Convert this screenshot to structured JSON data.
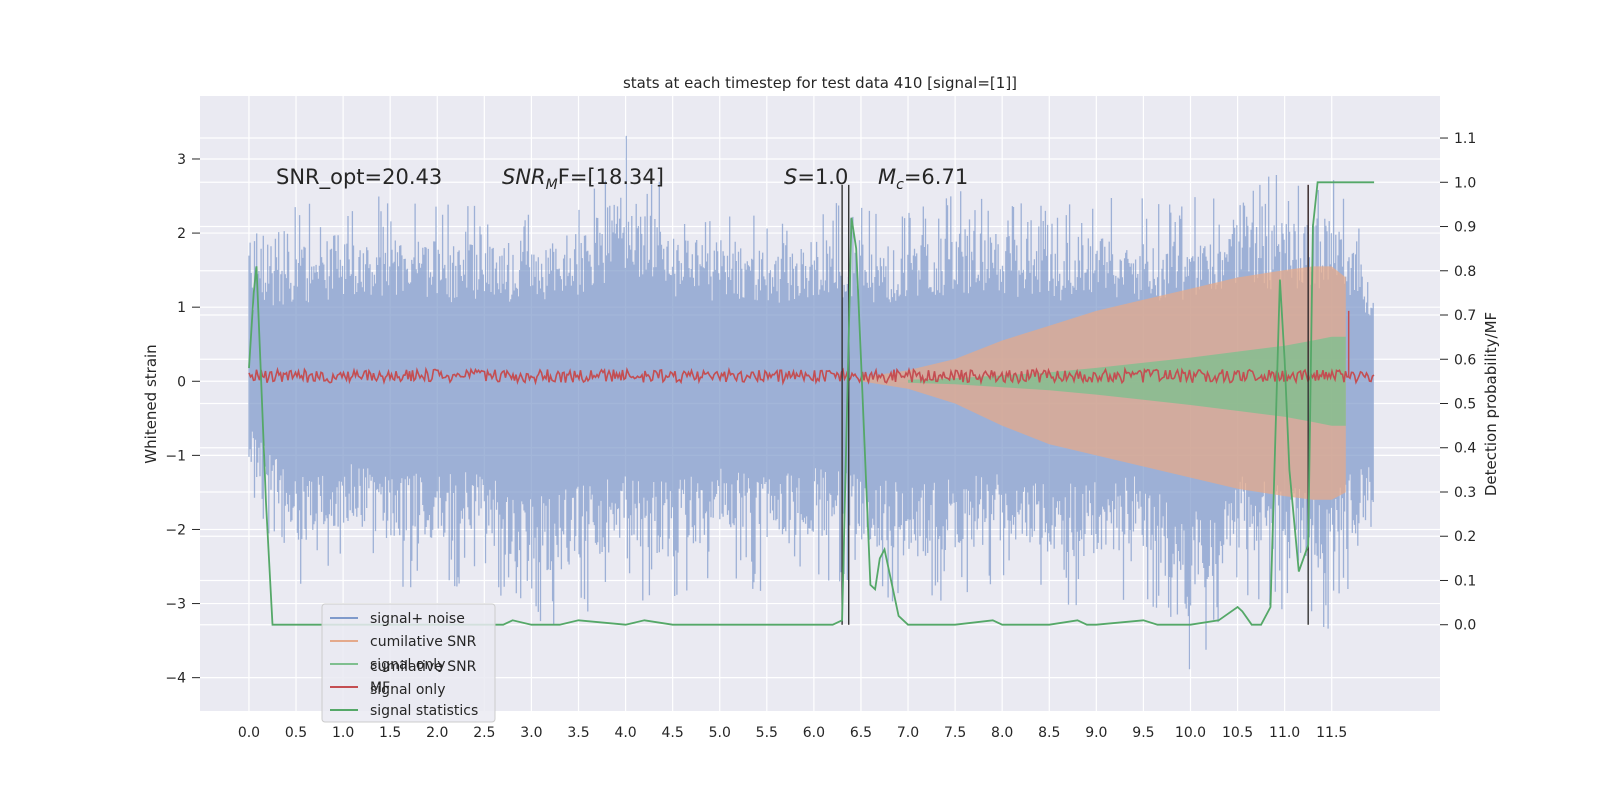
{
  "chart_data": {
    "type": "line",
    "title": "stats at each timestep for test data 410 [signal=[1]]",
    "xlabel": "",
    "ylabel": "Whitened strain",
    "ylabel_right": "Detection probability/MF",
    "xlim": [
      -0.52,
      12.65
    ],
    "ylim": [
      -4.45,
      3.85
    ],
    "ylim_right": [
      -0.195,
      1.195
    ],
    "x_ticks": [
      "0.0",
      "0.5",
      "1.0",
      "1.5",
      "2.0",
      "2.5",
      "3.0",
      "3.5",
      "4.0",
      "4.5",
      "5.0",
      "5.5",
      "6.0",
      "6.5",
      "7.0",
      "7.5",
      "8.0",
      "8.5",
      "9.0",
      "9.5",
      "10.0",
      "10.5",
      "11.0",
      "11.5"
    ],
    "y_ticks": [
      "3",
      "2",
      "1",
      "0",
      "−1",
      "−2",
      "−3",
      "−4"
    ],
    "y_right_ticks": [
      "1.1",
      "1.0",
      "0.9",
      "0.8",
      "0.7",
      "0.6",
      "0.5",
      "0.4",
      "0.3",
      "0.2",
      "0.1",
      "0.0"
    ],
    "grid": true,
    "legend_position": "lower-left",
    "annotations": {
      "snr_opt": "SNR_opt=20.43",
      "snr_mf_sym": "SNR",
      "snr_mf_sub": "M",
      "snr_mf_rest": "F=[18.34]",
      "s_sym": "S",
      "s_rest": "=1.0",
      "mc_sym": "M",
      "mc_sub": "c",
      "mc_rest": "=6.71"
    },
    "legend": [
      {
        "label": "signal+ noise",
        "color": "#7f9acb"
      },
      {
        "label": "cumilative SNR",
        "color": "#e4a98b"
      },
      {
        "label": "signal only",
        "color": "#7fbf8f"
      },
      {
        "label": "MF",
        "color": "#c44e52"
      },
      {
        "label": "signal statistics",
        "color": "#55a868"
      }
    ],
    "ghost_legend": [
      "cumilative SNR",
      "signal only"
    ],
    "series": [
      {
        "name": "signal+ noise",
        "color": "#7f9acb",
        "note": "whitened strain, approx. amplitude envelope shown",
        "x": [
          0.0,
          0.5,
          1.0,
          1.5,
          2.0,
          2.5,
          3.0,
          3.5,
          4.0,
          4.5,
          5.0,
          5.5,
          6.0,
          6.5,
          7.0,
          7.5,
          8.0,
          8.5,
          9.0,
          9.5,
          10.0,
          10.5,
          11.0,
          11.5,
          11.95
        ],
        "upper": [
          1.9,
          2.3,
          2.5,
          2.4,
          2.4,
          2.3,
          2.4,
          2.5,
          3.3,
          2.5,
          2.4,
          2.3,
          2.4,
          2.4,
          2.2,
          2.6,
          2.5,
          2.4,
          2.5,
          2.4,
          2.4,
          2.8,
          2.7,
          2.8,
          1.7
        ],
        "lower": [
          -1.4,
          -2.9,
          -2.4,
          -2.7,
          -2.8,
          -2.6,
          -3.5,
          -3.1,
          -2.8,
          -3.0,
          -2.6,
          -2.9,
          -2.6,
          -2.7,
          -3.0,
          -2.9,
          -2.7,
          -2.9,
          -3.0,
          -2.8,
          -4.05,
          -2.8,
          -3.0,
          -3.3,
          -2.1
        ]
      },
      {
        "name": "cumilative SNR",
        "color": "#e4a98b",
        "x": [
          6.5,
          7.0,
          7.5,
          8.0,
          8.5,
          9.0,
          9.5,
          10.0,
          10.5,
          11.0,
          11.3,
          11.5,
          11.65
        ],
        "upper": [
          0.05,
          0.15,
          0.3,
          0.55,
          0.75,
          0.95,
          1.1,
          1.25,
          1.4,
          1.5,
          1.55,
          1.55,
          1.4
        ],
        "lower": [
          0.0,
          -0.1,
          -0.3,
          -0.6,
          -0.85,
          -1.0,
          -1.15,
          -1.3,
          -1.45,
          -1.55,
          -1.6,
          -1.6,
          -1.5
        ]
      },
      {
        "name": "signal only",
        "color": "#7fbf8f",
        "x": [
          7.0,
          7.5,
          8.0,
          8.5,
          9.0,
          9.5,
          10.0,
          10.5,
          11.0,
          11.3,
          11.5,
          11.65
        ],
        "upper": [
          0.02,
          0.04,
          0.08,
          0.12,
          0.18,
          0.25,
          0.32,
          0.4,
          0.48,
          0.55,
          0.6,
          0.6
        ],
        "lower": [
          -0.02,
          -0.04,
          -0.08,
          -0.12,
          -0.18,
          -0.25,
          -0.32,
          -0.4,
          -0.48,
          -0.55,
          -0.6,
          -0.6
        ]
      },
      {
        "name": "MF",
        "color": "#c44e52",
        "note": "narrow band around zero, spike at 11.68",
        "level": 0.07,
        "x_spikes": [
          11.68,
          11.25
        ],
        "y_spikes": [
          0.95,
          2.65
        ]
      },
      {
        "name": "signal statistics",
        "color": "#55a868",
        "axis": "right",
        "x": [
          0.0,
          0.05,
          0.08,
          0.12,
          0.18,
          0.25,
          0.3,
          0.5,
          1.0,
          1.5,
          2.0,
          2.5,
          2.7,
          2.8,
          3.0,
          3.3,
          3.5,
          4.0,
          4.2,
          4.5,
          5.0,
          5.5,
          6.0,
          6.2,
          6.3,
          6.4,
          6.45,
          6.5,
          6.6,
          6.65,
          6.7,
          6.75,
          6.8,
          6.9,
          7.0,
          7.5,
          7.9,
          8.0,
          8.5,
          8.8,
          8.9,
          9.0,
          9.5,
          9.65,
          9.9,
          10.0,
          10.3,
          10.5,
          10.55,
          10.65,
          10.75,
          10.85,
          10.95,
          11.0,
          11.05,
          11.15,
          11.25,
          11.3,
          11.35,
          11.5,
          11.6,
          11.95
        ],
        "y": [
          0.58,
          0.75,
          0.81,
          0.6,
          0.28,
          0.0,
          0.0,
          0.0,
          0.0,
          0.0,
          0.0,
          0.0,
          0.0,
          0.01,
          0.0,
          0.0,
          0.01,
          0.0,
          0.01,
          0.0,
          0.0,
          0.0,
          0.0,
          0.0,
          0.01,
          0.92,
          0.85,
          0.6,
          0.09,
          0.08,
          0.15,
          0.17,
          0.12,
          0.02,
          0.0,
          0.0,
          0.01,
          0.0,
          0.0,
          0.01,
          0.0,
          0.0,
          0.01,
          0.0,
          0.0,
          0.0,
          0.01,
          0.04,
          0.03,
          0.0,
          0.0,
          0.04,
          0.78,
          0.6,
          0.35,
          0.12,
          0.18,
          0.9,
          1.0,
          1.0,
          1.0,
          1.0
        ]
      }
    ],
    "vlines": [
      6.3,
      6.37,
      11.25
    ]
  }
}
